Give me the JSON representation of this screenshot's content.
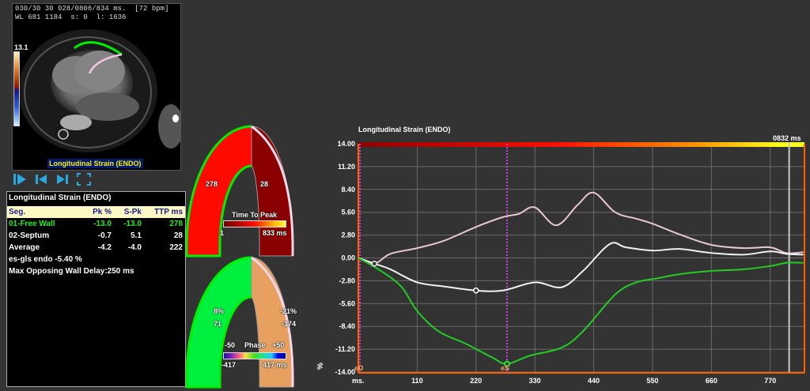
{
  "viewer": {
    "info_line1": "030/30 30 028/0806/834 ms.  [72 bpm]",
    "info_line2": "WL 681 1184  s: 0  l: 1636",
    "colorbar_max": "13.1",
    "title": "Longitudinal Strain (ENDO)"
  },
  "toolbar": {
    "buttons": [
      "play-icon",
      "previous-frame-icon",
      "next-frame-icon",
      "fullscreen-icon"
    ]
  },
  "stats": {
    "title": "Longitudinal Strain (ENDO)",
    "headers": {
      "seg": "Seg.",
      "pk": "Pk %",
      "spk": "S-Pk",
      "ttp": "TTP ms"
    },
    "rows": [
      {
        "seg": "01-Free Wall",
        "pk": "-13.0",
        "spk": "-13.0",
        "ttp": "278",
        "color": "#22ee22"
      },
      {
        "seg": "02-Septum",
        "pk": "-0.7",
        "spk": "5.1",
        "ttp": "28",
        "color": "#ffffff"
      },
      {
        "seg": "Average",
        "pk": "-4.2",
        "spk": "-4.0",
        "ttp": "222",
        "color": "#ffffff"
      }
    ],
    "es_gls": "es-gls endo -5.40 %",
    "max_delay": "Max Opposing Wall Delay:250 ms"
  },
  "ttp_gauge": {
    "left_value": "278",
    "right_value": "28",
    "left_color": "#ff0a00",
    "right_color": "#8b0000",
    "legend_title": "Time To Peak",
    "legend_min": "1",
    "legend_max": "833 ms"
  },
  "phase_gauge": {
    "left_pct": "8%",
    "left_value": "71",
    "right_pct": "-21%",
    "right_value": "-174",
    "left_color": "#00f040",
    "right_color": "#e8a060",
    "legend_min_label": "-50",
    "legend_title": "Phase",
    "legend_max_label": "+50",
    "legend_min": "-417",
    "legend_max": "417 ms"
  },
  "chart": {
    "title": "Longitudinal Strain (ENDO)",
    "cursor_label": "0832 ms",
    "x_unit": "ms.",
    "y_unit": "%",
    "ed_label": "eD",
    "es_label": "eS"
  },
  "chart_data": {
    "type": "line",
    "title": "Longitudinal Strain (ENDO)",
    "xlabel": "ms.",
    "ylabel": "%",
    "xlim": [
      0,
      834
    ],
    "ylim": [
      -14.0,
      14.0
    ],
    "x_ticks": [
      110,
      220,
      330,
      440,
      550,
      660,
      770
    ],
    "y_ticks": [
      14.0,
      11.2,
      8.4,
      5.6,
      2.8,
      0.0,
      -2.8,
      -5.6,
      -8.4,
      -11.2,
      -14.0
    ],
    "grid": true,
    "markers": {
      "eD_ms": 0,
      "eS_ms": 278,
      "cursor_ms": 832
    },
    "series": [
      {
        "name": "02-Septum",
        "color": "#e8c8d0",
        "x": [
          0,
          30,
          60,
          110,
          160,
          220,
          270,
          300,
          330,
          370,
          410,
          440,
          480,
          520,
          550,
          600,
          660,
          720,
          770,
          800,
          832
        ],
        "y": [
          0,
          -0.7,
          0.5,
          1.2,
          2.1,
          3.8,
          5.0,
          5.4,
          6.2,
          4.0,
          6.5,
          8.0,
          5.6,
          4.8,
          4.2,
          2.9,
          1.6,
          1.2,
          1.3,
          0.6,
          0.7
        ]
      },
      {
        "name": "Average",
        "color": "#f0f0f0",
        "x": [
          0,
          30,
          60,
          110,
          160,
          220,
          270,
          330,
          380,
          420,
          470,
          500,
          550,
          600,
          660,
          720,
          770,
          800,
          832
        ],
        "y": [
          0,
          -0.7,
          -1.4,
          -3.0,
          -3.5,
          -4.0,
          -4.0,
          -3.0,
          -3.6,
          -1.6,
          1.7,
          1.3,
          0.9,
          1.1,
          0.6,
          0.4,
          0.8,
          0.5,
          0.4
        ]
      },
      {
        "name": "01-Free Wall",
        "color": "#22cc22",
        "x": [
          0,
          40,
          80,
          110,
          150,
          200,
          250,
          278,
          320,
          380,
          420,
          480,
          520,
          560,
          600,
          660,
          720,
          770,
          800,
          832
        ],
        "y": [
          0,
          -1.5,
          -3.5,
          -6.5,
          -9.0,
          -10.5,
          -12.2,
          -13.0,
          -12.0,
          -11.0,
          -9.0,
          -4.5,
          -3.0,
          -2.5,
          -2.0,
          -1.6,
          -1.4,
          -1.0,
          -0.6,
          -0.6
        ]
      }
    ]
  }
}
